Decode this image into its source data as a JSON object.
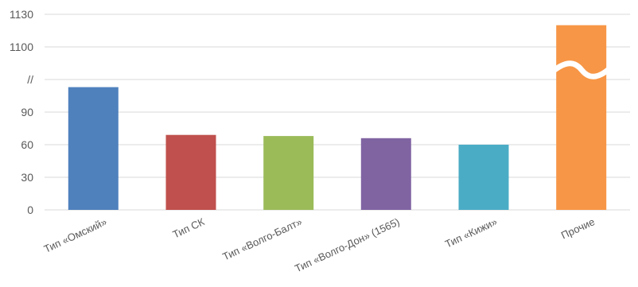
{
  "chart_data": {
    "type": "bar",
    "categories": [
      "Тип «Омский»",
      "Тип СК",
      "Тип «Волго-Балт»",
      "Тип «Волго-Дон» (1565)",
      "Тип «Кижи»",
      "Прочие"
    ],
    "values": [
      113,
      69,
      68,
      66,
      60,
      1120
    ],
    "colors": [
      "#4f81bd",
      "#c0504d",
      "#9bbb59",
      "#8064a2",
      "#4bacc6",
      "#f79646"
    ],
    "y_ticks": [
      "0",
      "30",
      "60",
      "90",
      "//",
      "1100",
      "1130"
    ],
    "y_axis_break": {
      "lower_max": 120,
      "upper_min": 1100,
      "upper_max": 1130
    },
    "title": "",
    "xlabel": "",
    "ylabel": "",
    "grid": true,
    "legend": "none"
  }
}
